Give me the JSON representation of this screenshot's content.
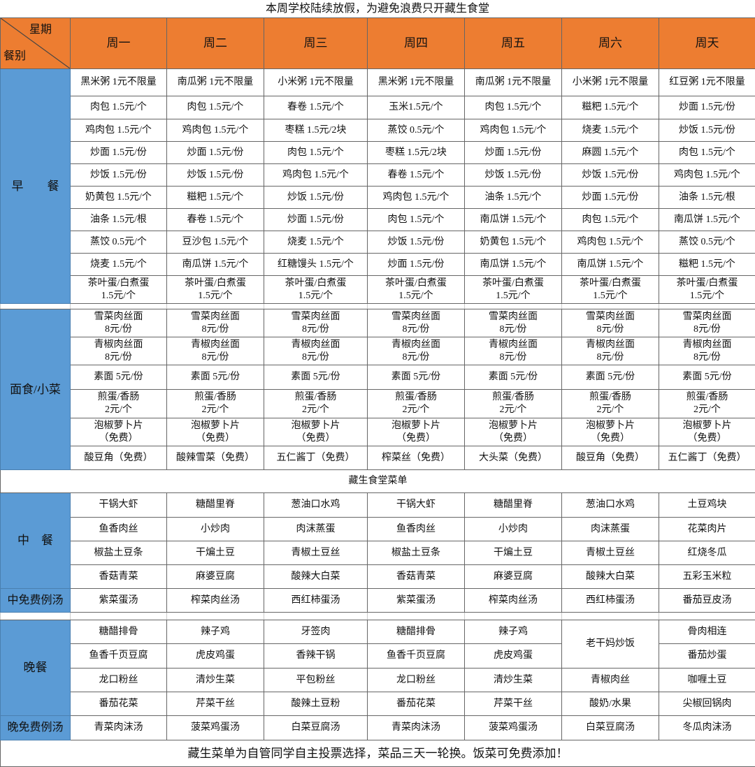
{
  "title": "本周学校陆续放假，为避免浪费只开藏生食堂",
  "header": {
    "corner_top": "星期",
    "corner_bottom": "餐别",
    "days": [
      "周一",
      "周二",
      "周三",
      "周四",
      "周五",
      "周六",
      "周天"
    ]
  },
  "colors": {
    "header_bg": "#ED7D31",
    "side_bg": "#5B9BD5"
  },
  "breakfast": {
    "label": "早　　餐",
    "rows": [
      [
        "黑米粥 1元不限量",
        "南瓜粥 1元不限量",
        "小米粥 1元不限量",
        "黑米粥 1元不限量",
        "南瓜粥 1元不限量",
        "小米粥 1元不限量",
        "红豆粥 1元不限量"
      ],
      [
        "肉包 1.5元/个",
        "肉包 1.5元/个",
        "春卷 1.5元/个",
        "玉米1.5元/个",
        "肉包 1.5元/个",
        "糍粑 1.5元/个",
        "炒面 1.5元/份"
      ],
      [
        "鸡肉包 1.5元/个",
        "鸡肉包 1.5元/个",
        "枣糕 1.5元/2块",
        "蒸饺 0.5元/个",
        "鸡肉包 1.5元/个",
        "烧麦 1.5元/个",
        "炒饭 1.5元/份"
      ],
      [
        "炒面 1.5元/份",
        "炒面 1.5元/份",
        "肉包 1.5元/个",
        "枣糕 1.5元/2块",
        "炒面 1.5元/份",
        "麻圆 1.5元/个",
        "肉包 1.5元/个"
      ],
      [
        "炒饭 1.5元/份",
        "炒饭 1.5元/份",
        "鸡肉包 1.5元/个",
        "春卷 1.5元/个",
        "炒饭 1.5元/份",
        "炒饭 1.5元/份",
        "鸡肉包 1.5元/个"
      ],
      [
        "奶黄包 1.5元/个",
        "糍粑 1.5元/个",
        "炒饭 1.5元/份",
        "鸡肉包 1.5元/个",
        "油条 1.5元/个",
        "炒面 1.5元/份",
        "油条 1.5元/根"
      ],
      [
        "油条 1.5元/根",
        "春卷 1.5元/个",
        "炒面 1.5元/份",
        "肉包 1.5元/个",
        "南瓜饼 1.5元/个",
        "肉包 1.5元/个",
        "南瓜饼 1.5元/个"
      ],
      [
        "蒸饺 0.5元/个",
        "豆沙包 1.5元/个",
        "烧麦 1.5元/个",
        "炒饭 1.5元/份",
        "奶黄包 1.5元/个",
        "鸡肉包 1.5元/个",
        "蒸饺 0.5元/个"
      ],
      [
        "烧麦 1.5元/个",
        "南瓜饼 1.5元/个",
        "红糖馒头 1.5元/个",
        "炒面 1.5元/份",
        "南瓜饼 1.5元/个",
        "南瓜饼 1.5元/个",
        "糍粑 1.5元/个"
      ],
      [
        "茶叶蛋/白煮蛋\n1.5元/个",
        "茶叶蛋/白煮蛋\n1.5元/个",
        "茶叶蛋/白煮蛋\n1.5元/个",
        "茶叶蛋/白煮蛋\n1.5元/个",
        "茶叶蛋/白煮蛋\n1.5元/个",
        "茶叶蛋/白煮蛋\n1.5元/个",
        "茶叶蛋/白煮蛋\n1.5元/个"
      ]
    ]
  },
  "noodles": {
    "label": "面食/小菜",
    "rows": [
      [
        "雪菜肉丝面\n8元/份",
        "雪菜肉丝面\n8元/份",
        "雪菜肉丝面\n8元/份",
        "雪菜肉丝面\n8元/份",
        "雪菜肉丝面\n8元/份",
        "雪菜肉丝面\n8元/份",
        "雪菜肉丝面\n8元/份"
      ],
      [
        "青椒肉丝面\n8元/份",
        "青椒肉丝面\n8元/份",
        "青椒肉丝面\n8元/份",
        "青椒肉丝面\n8元/份",
        "青椒肉丝面\n8元/份",
        "青椒肉丝面\n8元/份",
        "青椒肉丝面\n8元/份"
      ],
      [
        "素面 5元/份",
        "素面 5元/份",
        "素面 5元/份",
        "素面 5元/份",
        "素面 5元/份",
        "素面 5元/份",
        "素面 5元/份"
      ],
      [
        "煎蛋/香肠\n2元/个",
        "煎蛋/香肠\n2元/个",
        "煎蛋/香肠\n2元/个",
        "煎蛋/香肠\n2元/个",
        "煎蛋/香肠\n2元/个",
        "煎蛋/香肠\n2元/个",
        "煎蛋/香肠\n2元/个"
      ],
      [
        "泡椒萝卜片\n（免费）",
        "泡椒萝卜片\n（免费）",
        "泡椒萝卜片\n（免费）",
        "泡椒萝卜片\n（免费）",
        "泡椒萝卜片\n（免费）",
        "泡椒萝卜片\n（免费）",
        "泡椒萝卜片\n（免费）"
      ],
      [
        "酸豆角（免费）",
        "酸辣雪菜（免费）",
        "五仁酱丁（免费）",
        "榨菜丝（免费）",
        "大头菜（免费）",
        "酸豆角（免费）",
        "五仁酱丁（免费）"
      ]
    ]
  },
  "canteen_title": "藏生食堂菜单",
  "lunch": {
    "label": "中　餐",
    "rows": [
      [
        "干锅大虾",
        "糖醋里脊",
        "葱油口水鸡",
        "干锅大虾",
        "糖醋里脊",
        "葱油口水鸡",
        "土豆鸡块"
      ],
      [
        "鱼香肉丝",
        "小炒肉",
        "肉沫蒸蛋",
        "鱼香肉丝",
        "小炒肉",
        "肉沫蒸蛋",
        "花菜肉片"
      ],
      [
        "椒盐土豆条",
        "干煸土豆",
        "青椒土豆丝",
        "椒盐土豆条",
        "干煸土豆",
        "青椒土豆丝",
        "红烧冬瓜"
      ],
      [
        "香菇青菜",
        "麻婆豆腐",
        "酸辣大白菜",
        "香菇青菜",
        "麻婆豆腐",
        "酸辣大白菜",
        "五彩玉米粒"
      ]
    ]
  },
  "lunch_soup": {
    "label": "中免费例汤",
    "items": [
      "紫菜蛋汤",
      "榨菜肉丝汤",
      "西红柿蛋汤",
      "紫菜蛋汤",
      "榨菜肉丝汤",
      "西红柿蛋汤",
      "番茄豆皮汤"
    ]
  },
  "dinner": {
    "label": "晚餐",
    "rows": [
      [
        "糖醋排骨",
        "辣子鸡",
        "牙签肉",
        "糖醋排骨",
        "辣子鸡",
        "老干妈炒饭",
        "骨肉相连"
      ],
      [
        "鱼香千页豆腐",
        "虎皮鸡蛋",
        "香辣干锅",
        "鱼香千页豆腐",
        "虎皮鸡蛋",
        null,
        "番茄炒蛋"
      ],
      [
        "龙口粉丝",
        "清炒生菜",
        "平包粉丝",
        "龙口粉丝",
        "清炒生菜",
        "青椒肉丝",
        "咖喱土豆"
      ],
      [
        "番茄花菜",
        "芹菜干丝",
        "酸辣土豆粉",
        "番茄花菜",
        "芹菜干丝",
        "酸奶/水果",
        "尖椒回锅肉"
      ]
    ]
  },
  "dinner_soup": {
    "label": "晚免费例汤",
    "items": [
      "青菜肉沫汤",
      "菠菜鸡蛋汤",
      "白菜豆腐汤",
      "青菜肉沫汤",
      "菠菜鸡蛋汤",
      "白菜豆腐汤",
      "冬瓜肉沫汤"
    ]
  },
  "footer": "藏生菜单为自管同学自主投票选择，菜品三天一轮换。饭菜可免费添加！"
}
